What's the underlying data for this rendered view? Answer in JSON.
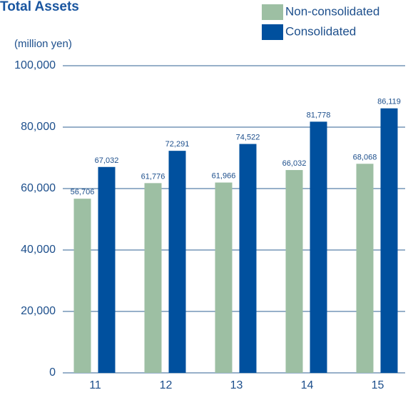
{
  "chart_data": {
    "type": "bar",
    "title": "Total Assets",
    "y_label": "(million yen)",
    "categories": [
      "11",
      "12",
      "13",
      "14",
      "15"
    ],
    "series": [
      {
        "name": "Non-consolidated",
        "color": "#9dbfa3",
        "values": [
          56706,
          61776,
          61966,
          66032,
          68068
        ],
        "value_labels": [
          "56,706",
          "61,776",
          "61,966",
          "66,032",
          "68,068"
        ]
      },
      {
        "name": "Consolidated",
        "color": "#00509e",
        "values": [
          67032,
          72291,
          74522,
          81778,
          86119
        ],
        "value_labels": [
          "67,032",
          "72,291",
          "74,522",
          "81,778",
          "86,119"
        ]
      }
    ],
    "ylim": [
      0,
      100000
    ],
    "yticks": [
      0,
      {
        "value": 20000,
        "label": "20,000"
      },
      {
        "value": 40000,
        "label": "40,000"
      },
      {
        "value": 60000,
        "label": "60,000"
      },
      {
        "value": 80000,
        "label": "80,000"
      },
      {
        "value": 100000,
        "label": "100,000"
      }
    ],
    "grid": true,
    "legend": "top-right"
  }
}
